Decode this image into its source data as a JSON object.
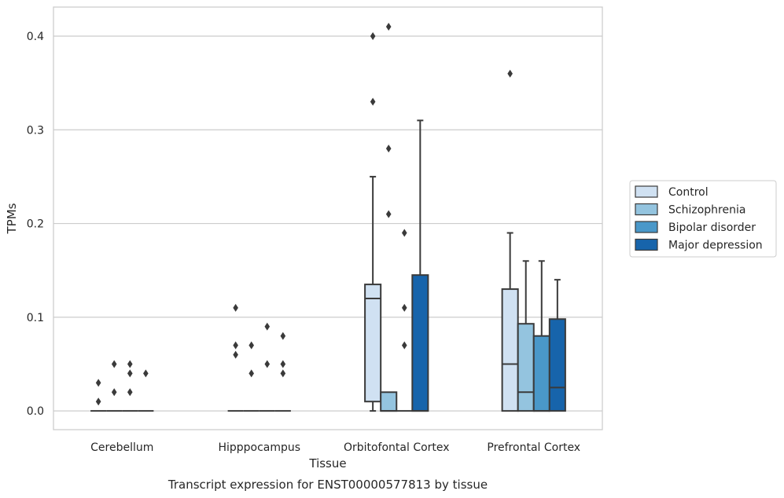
{
  "chart_data": {
    "type": "box",
    "title": "",
    "caption": "Transcript expression for ENST00000577813 by tissue",
    "xlabel": "Tissue",
    "ylabel": "TPMs",
    "ylim": [
      -0.02,
      0.431
    ],
    "yticks": [
      0.0,
      0.1,
      0.2,
      0.3,
      0.4
    ],
    "ytick_labels": [
      "0.0",
      "0.1",
      "0.2",
      "0.3",
      "0.4"
    ],
    "grid": "horizontal",
    "legend_position": "right",
    "categories": [
      "Cerebellum",
      "Hipppocampus",
      "Orbitofontal Cortex",
      "Prefrontal Cortex"
    ],
    "series": [
      {
        "name": "Control",
        "color": "#d0e1f2"
      },
      {
        "name": "Schizophrenia",
        "color": "#94c4df"
      },
      {
        "name": "Bipolar disorder",
        "color": "#4a98c9"
      },
      {
        "name": "Major depression",
        "color": "#1764ab"
      }
    ],
    "boxes": [
      [
        {
          "q1": 0,
          "median": 0,
          "q3": 0,
          "low": 0,
          "high": 0,
          "outliers": [
            0.01,
            0.03
          ]
        },
        {
          "q1": 0,
          "median": 0,
          "q3": 0,
          "low": 0,
          "high": 0,
          "outliers": [
            0.02,
            0.05
          ]
        },
        {
          "q1": 0,
          "median": 0,
          "q3": 0,
          "low": 0,
          "high": 0,
          "outliers": [
            0.02,
            0.04,
            0.05
          ]
        },
        {
          "q1": 0,
          "median": 0,
          "q3": 0,
          "low": 0,
          "high": 0,
          "outliers": [
            0.04
          ]
        }
      ],
      [
        {
          "q1": 0,
          "median": 0,
          "q3": 0,
          "low": 0,
          "high": 0,
          "outliers": [
            0.06,
            0.07,
            0.11
          ]
        },
        {
          "q1": 0,
          "median": 0,
          "q3": 0,
          "low": 0,
          "high": 0,
          "outliers": [
            0.04,
            0.07
          ]
        },
        {
          "q1": 0,
          "median": 0,
          "q3": 0,
          "low": 0,
          "high": 0,
          "outliers": [
            0.05,
            0.09
          ]
        },
        {
          "q1": 0,
          "median": 0,
          "q3": 0,
          "low": 0,
          "high": 0,
          "outliers": [
            0.04,
            0.05,
            0.08
          ]
        }
      ],
      [
        {
          "q1": 0.01,
          "median": 0.12,
          "q3": 0.135,
          "low": 0,
          "high": 0.25,
          "outliers": [
            0.33,
            0.4
          ]
        },
        {
          "q1": 0,
          "median": 0,
          "q3": 0.02,
          "low": 0,
          "high": 0.02,
          "outliers": [
            0.21,
            0.28,
            0.41
          ]
        },
        {
          "q1": 0,
          "median": 0,
          "q3": 0,
          "low": 0,
          "high": 0,
          "outliers": [
            0.07,
            0.11,
            0.19
          ]
        },
        {
          "q1": 0,
          "median": 0,
          "q3": 0.145,
          "low": 0,
          "high": 0.31,
          "outliers": []
        }
      ],
      [
        {
          "q1": 0,
          "median": 0.05,
          "q3": 0.13,
          "low": 0,
          "high": 0.19,
          "outliers": [
            0.36
          ]
        },
        {
          "q1": 0,
          "median": 0.02,
          "q3": 0.093,
          "low": 0,
          "high": 0.16,
          "outliers": []
        },
        {
          "q1": 0,
          "median": 0,
          "q3": 0.08,
          "low": 0,
          "high": 0.16,
          "outliers": []
        },
        {
          "q1": 0,
          "median": 0.025,
          "q3": 0.098,
          "low": 0,
          "high": 0.14,
          "outliers": []
        }
      ]
    ]
  }
}
